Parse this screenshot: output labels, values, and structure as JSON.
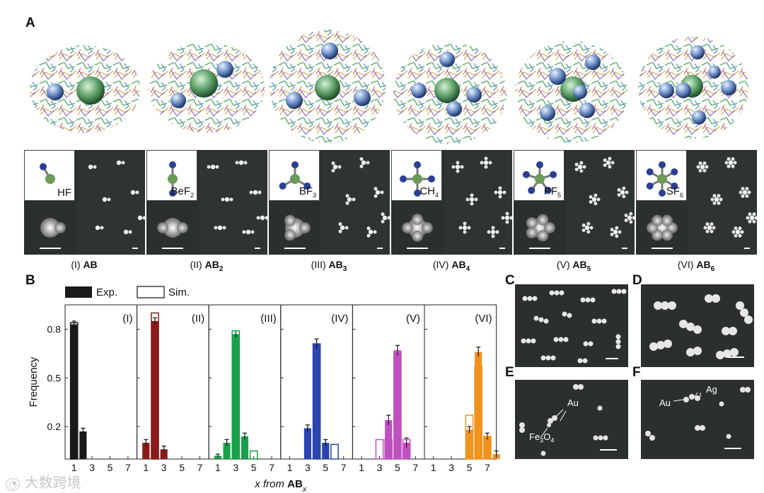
{
  "figure": {
    "panel_labels": {
      "a": "A",
      "b": "B",
      "c": "C",
      "d": "D",
      "e": "E",
      "f": "F"
    },
    "panel_a": {
      "items": [
        {
          "formula_main": "HF",
          "formula_sub": "",
          "roman": "(I)",
          "cls_main": "AB",
          "cls_sub": ""
        },
        {
          "formula_main": "BeF",
          "formula_sub": "2",
          "roman": "(II)",
          "cls_main": "AB",
          "cls_sub": "2"
        },
        {
          "formula_main": "BF",
          "formula_sub": "3",
          "roman": "(III)",
          "cls_main": "AB",
          "cls_sub": "3"
        },
        {
          "formula_main": "CH",
          "formula_sub": "4",
          "roman": "(IV)",
          "cls_main": "AB",
          "cls_sub": "4"
        },
        {
          "formula_main": "PF",
          "formula_sub": "5",
          "roman": "(V)",
          "cls_main": "AB",
          "cls_sub": "5"
        },
        {
          "formula_main": "SF",
          "formula_sub": "6",
          "roman": "(VI)",
          "cls_main": "AB",
          "cls_sub": "6"
        }
      ]
    },
    "panel_e": {
      "au": "Au",
      "fe": "Fe",
      "fe_sub1": "3",
      "o": "O",
      "fe_sub2": "4"
    },
    "panel_f": {
      "au": "Au",
      "ag": "Ag"
    },
    "watermark": "大数跨境",
    "colors": {
      "bar_I": "#1a1a1a",
      "bar_II": "#8b1a1a",
      "bar_III": "#1aa04a",
      "bar_IV": "#2a44b0",
      "bar_V": "#c050c0",
      "bar_VI": "#f0921e",
      "micro_bg": "#2b2f2e"
    }
  },
  "chart_data": {
    "type": "bar",
    "title": "",
    "legend": [
      "Exp.",
      "Sim."
    ],
    "ylabel": "Frequency",
    "xlabel_prefix": "x from ",
    "xlabel_bold": "AB",
    "xlabel_sub": "x",
    "ylim": [
      0,
      0.95
    ],
    "yticks": [
      0.2,
      0.5,
      0.8
    ],
    "ytick_labels": [
      "0.2",
      "0.5",
      "0.8"
    ],
    "xlim": [
      0,
      8
    ],
    "xticks": [
      1,
      3,
      5,
      7
    ],
    "xtick_labels": [
      "1",
      "3",
      "5",
      "7"
    ],
    "panels": [
      {
        "label": "(I)",
        "exp_x": [
          1,
          2
        ],
        "exp_y": [
          0.83,
          0.17
        ],
        "exp_err": [
          0.02,
          0.02
        ],
        "sim_x": [
          1
        ],
        "sim_y": [
          0.84
        ]
      },
      {
        "label": "(II)",
        "exp_x": [
          1,
          2,
          3
        ],
        "exp_y": [
          0.1,
          0.85,
          0.06
        ],
        "exp_err": [
          0.02,
          0.02,
          0.02
        ],
        "sim_x": [
          2
        ],
        "sim_y": [
          0.9
        ]
      },
      {
        "label": "(III)",
        "exp_x": [
          1,
          2,
          3,
          4
        ],
        "exp_y": [
          0.02,
          0.1,
          0.77,
          0.14
        ],
        "exp_err": [
          0.01,
          0.02,
          0.02,
          0.02
        ],
        "sim_x": [
          3,
          5
        ],
        "sim_y": [
          0.79,
          0.05
        ]
      },
      {
        "label": "(IV)",
        "exp_x": [
          3,
          4,
          5
        ],
        "exp_y": [
          0.19,
          0.71,
          0.1
        ],
        "exp_err": [
          0.02,
          0.03,
          0.02
        ],
        "sim_x": [
          4,
          6
        ],
        "sim_y": [
          0.71,
          0.09
        ]
      },
      {
        "label": "(V)",
        "exp_x": [
          4,
          5,
          6
        ],
        "exp_y": [
          0.24,
          0.67,
          0.1
        ],
        "exp_err": [
          0.03,
          0.03,
          0.03
        ],
        "sim_x": [
          3,
          4,
          5,
          6
        ],
        "sim_y": [
          0.12,
          0.12,
          0.66,
          0.12
        ]
      },
      {
        "label": "(VI)",
        "exp_x": [
          5,
          6,
          7,
          8
        ],
        "exp_y": [
          0.18,
          0.66,
          0.14,
          0.03
        ],
        "exp_err": [
          0.02,
          0.03,
          0.02,
          0.02
        ],
        "sim_x": [
          5,
          6,
          7
        ],
        "sim_y": [
          0.27,
          0.57,
          0.14
        ]
      }
    ]
  }
}
